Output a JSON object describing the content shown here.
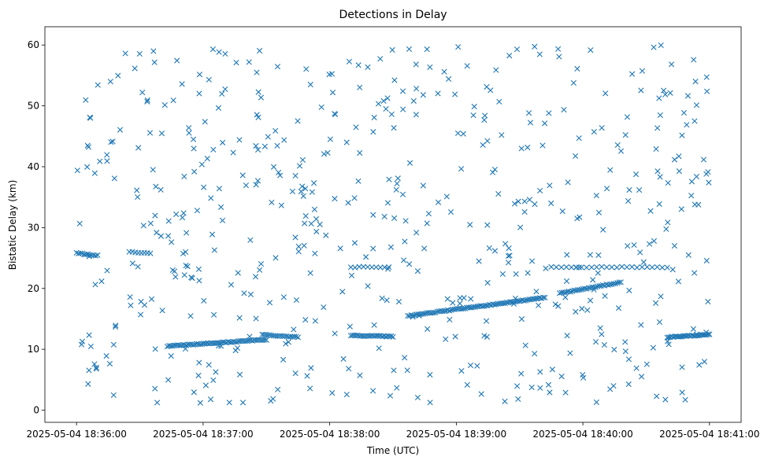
{
  "chart_data": {
    "type": "scatter",
    "title": "Detections in Delay",
    "xlabel": "Time (UTC)",
    "ylabel": "Bistatic Delay (km)",
    "x_unit": "time",
    "x_ticks": [
      {
        "t": "18:36:00",
        "label": "2025-05-04 18:36:00"
      },
      {
        "t": "18:37:00",
        "label": "2025-05-04 18:37:00"
      },
      {
        "t": "18:38:00",
        "label": "2025-05-04 18:38:00"
      },
      {
        "t": "18:39:00",
        "label": "2025-05-04 18:39:00"
      },
      {
        "t": "18:40:00",
        "label": "2025-05-04 18:40:00"
      },
      {
        "t": "18:41:00",
        "label": "2025-05-04 18:41:00"
      }
    ],
    "y_ticks": [
      0,
      10,
      20,
      30,
      40,
      50,
      60
    ],
    "xlim": [
      "18:35:45",
      "18:41:15"
    ],
    "ylim": [
      -2,
      63
    ],
    "marker": "x",
    "color": "#1f77b4",
    "grid": false,
    "tracks": [
      {
        "from": [
          "18:36:43",
          10.5
        ],
        "to": [
          "18:37:30",
          11.6
        ],
        "n": 58
      },
      {
        "from": [
          "18:37:28",
          12.4
        ],
        "to": [
          "18:37:45",
          12.0
        ],
        "n": 20
      },
      {
        "from": [
          "18:38:10",
          12.3
        ],
        "to": [
          "18:38:30",
          12.1
        ],
        "n": 25
      },
      {
        "from": [
          "18:38:37",
          15.5
        ],
        "to": [
          "18:39:42",
          18.5
        ],
        "n": 80
      },
      {
        "from": [
          "18:39:49",
          19.2
        ],
        "to": [
          "18:40:18",
          21.0
        ],
        "n": 35
      },
      {
        "from": [
          "18:40:40",
          12.0
        ],
        "to": [
          "18:41:00",
          12.4
        ],
        "n": 30
      },
      {
        "from": [
          "18:36:00",
          25.8
        ],
        "to": [
          "18:36:10",
          25.4
        ],
        "n": 12
      },
      {
        "from": [
          "18:36:25",
          26.0
        ],
        "to": [
          "18:36:35",
          25.8
        ],
        "n": 8
      },
      {
        "from": [
          "18:38:10",
          23.5
        ],
        "to": [
          "18:38:28",
          23.5
        ],
        "n": 10
      },
      {
        "from": [
          "18:39:45",
          23.5
        ],
        "to": [
          "18:40:40",
          23.5
        ],
        "n": 24
      }
    ],
    "scattered": {
      "count": 560,
      "x_from": "18:36:00",
      "x_to": "18:41:00",
      "y_from": 1,
      "y_to": 60
    }
  }
}
